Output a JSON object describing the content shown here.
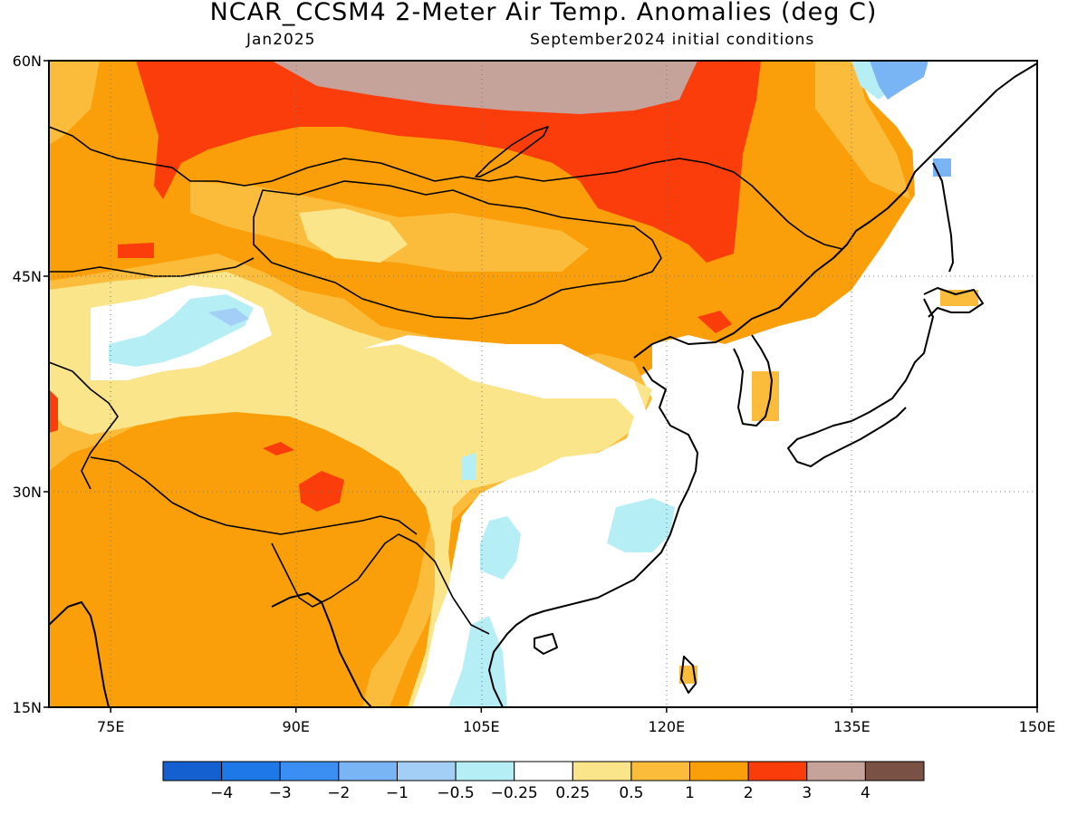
{
  "header": {
    "title": "NCAR_CCSM4 2-Meter Air Temp. Anomalies (deg C)",
    "valid_month": "Jan2025",
    "init": "September2024 initial conditions"
  },
  "map": {
    "lon_range": [
      70,
      150
    ],
    "lat_range": [
      15,
      60
    ],
    "x_ticks": [
      {
        "value": 75,
        "label": "75E"
      },
      {
        "value": 90,
        "label": "90E"
      },
      {
        "value": 105,
        "label": "105E"
      },
      {
        "value": 120,
        "label": "120E"
      },
      {
        "value": 135,
        "label": "135E"
      },
      {
        "value": 150,
        "label": "150E"
      }
    ],
    "y_ticks": [
      {
        "value": 60,
        "label": "60N"
      },
      {
        "value": 45,
        "label": "45N"
      },
      {
        "value": 30,
        "label": "30N"
      },
      {
        "value": 15,
        "label": "15N"
      }
    ],
    "grid": "dotted"
  },
  "colorbar": {
    "colors": [
      "#1560d1",
      "#1f78e8",
      "#3b8ff2",
      "#79b5f5",
      "#a3cff7",
      "#b6eef6",
      "#ffffff",
      "#fbe58a",
      "#fbbc3c",
      "#fa9f0a",
      "#fb3c0b",
      "#c6a39a",
      "#7a5245"
    ],
    "labels": [
      "-4",
      "-3",
      "-2",
      "-1",
      "-0.5",
      "-0.25",
      "0.25",
      "0.5",
      "1",
      "2",
      "3",
      "4"
    ]
  },
  "palette": {
    "white": "#ffffff",
    "light_blue": "#b6eef6",
    "pale_blue": "#a3cff7",
    "blue": "#79b5f5",
    "yellow": "#fbe58a",
    "light_orange": "#fbbc3c",
    "orange": "#fa9f0a",
    "red": "#fb3c0b",
    "brown": "#c6a39a",
    "coast": "#000000"
  }
}
